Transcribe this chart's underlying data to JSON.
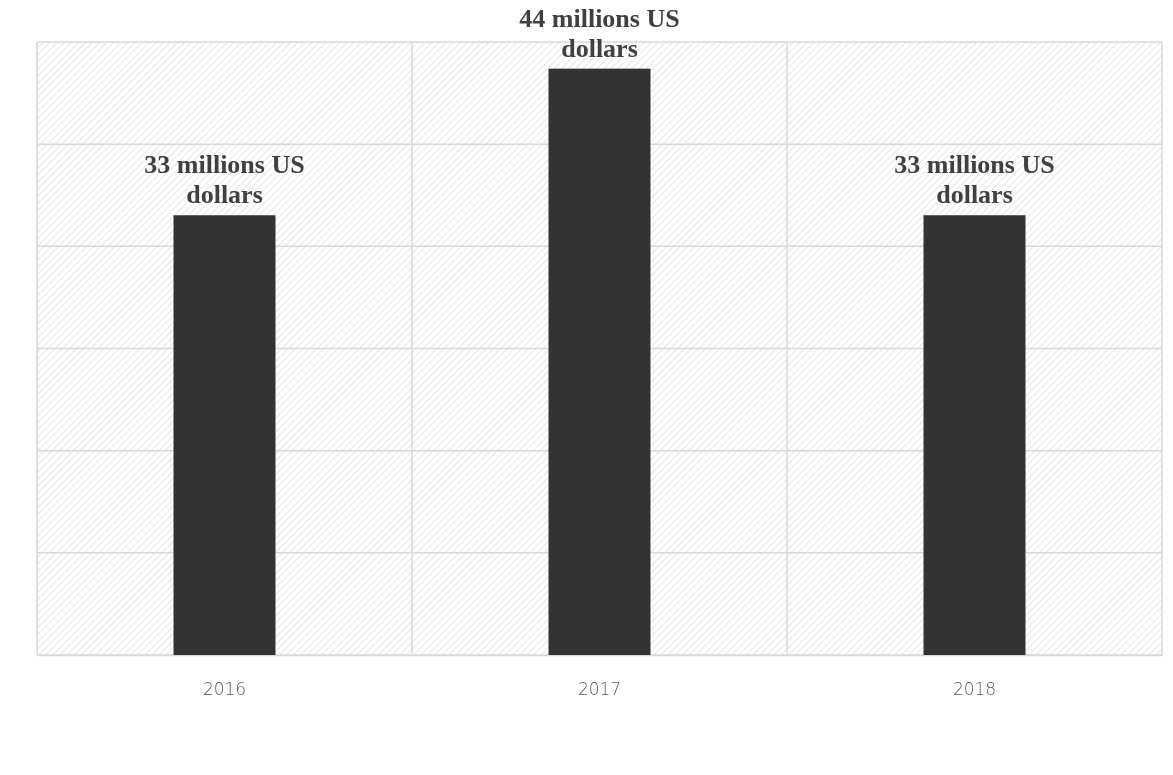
{
  "chart_data": {
    "type": "bar",
    "categories": [
      "2016",
      "2017",
      "2018"
    ],
    "values": [
      33,
      44,
      33
    ],
    "color": "#333333",
    "value_labels": [
      "33 millions US dollars",
      "44 millions US dollars",
      "33 millions US dollars"
    ],
    "ylim": [
      0,
      46
    ],
    "yticks": [
      {
        "value": 0,
        "label": null
      },
      {
        "value": 7.67,
        "label": null
      },
      {
        "value": 15.33,
        "label": null
      },
      {
        "value": 23,
        "label": null
      },
      {
        "value": 30.67,
        "label": null
      },
      {
        "value": 38.33,
        "label": null
      },
      {
        "value": 46,
        "label": null
      }
    ],
    "tick_labels": "x",
    "grid": true
  }
}
